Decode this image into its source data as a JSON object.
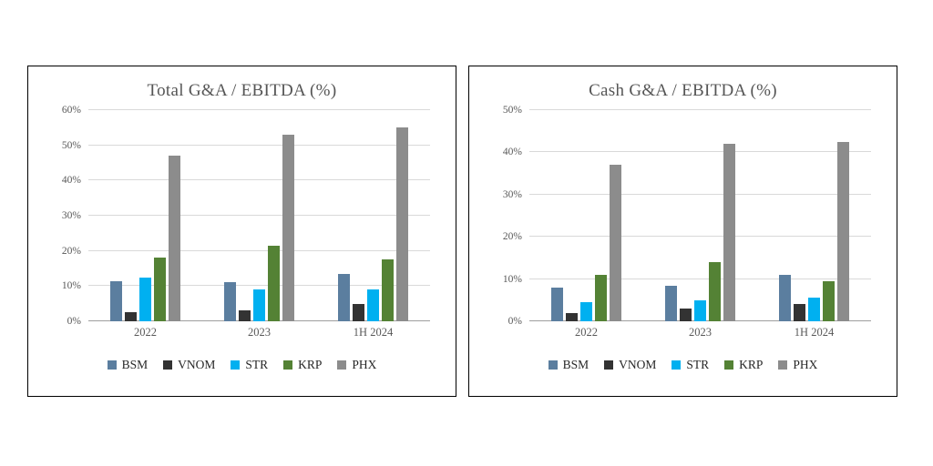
{
  "chart_data": [
    {
      "type": "bar",
      "title": "Total G&A / EBITDA (%)",
      "xlabel": "",
      "ylabel": "",
      "ylim": [
        0,
        60
      ],
      "ymax": 60,
      "ytick": 10,
      "ytick_labels": [
        "0%",
        "10%",
        "20%",
        "30%",
        "40%",
        "50%",
        "60%"
      ],
      "grid": true,
      "legend_position": "bottom",
      "categories": [
        "2022",
        "2023",
        "1H 2024"
      ],
      "series": [
        {
          "name": "BSM",
          "color": "#5b7e9f",
          "values": [
            11.5,
            11.0,
            13.5
          ]
        },
        {
          "name": "VNOM",
          "color": "#333333",
          "values": [
            2.5,
            3.0,
            5.0
          ]
        },
        {
          "name": "STR",
          "color": "#00b0f0",
          "values": [
            12.5,
            9.0,
            9.0
          ]
        },
        {
          "name": "KRP",
          "color": "#548235",
          "values": [
            18.0,
            21.5,
            17.5
          ]
        },
        {
          "name": "PHX",
          "color": "#8c8c8c",
          "values": [
            47.0,
            53.0,
            55.0
          ]
        }
      ]
    },
    {
      "type": "bar",
      "title": "Cash G&A / EBITDA (%)",
      "xlabel": "",
      "ylabel": "",
      "ylim": [
        0,
        50
      ],
      "ymax": 50,
      "ytick": 10,
      "ytick_labels": [
        "0%",
        "10%",
        "20%",
        "30%",
        "40%",
        "50%"
      ],
      "grid": true,
      "legend_position": "bottom",
      "categories": [
        "2022",
        "2023",
        "1H 2024"
      ],
      "series": [
        {
          "name": "BSM",
          "color": "#5b7e9f",
          "values": [
            8.0,
            8.5,
            11.0
          ]
        },
        {
          "name": "VNOM",
          "color": "#333333",
          "values": [
            2.0,
            3.0,
            4.0
          ]
        },
        {
          "name": "STR",
          "color": "#00b0f0",
          "values": [
            4.5,
            5.0,
            5.5
          ]
        },
        {
          "name": "KRP",
          "color": "#548235",
          "values": [
            11.0,
            14.0,
            9.5
          ]
        },
        {
          "name": "PHX",
          "color": "#8c8c8c",
          "values": [
            37.0,
            42.0,
            42.5
          ]
        }
      ]
    }
  ]
}
